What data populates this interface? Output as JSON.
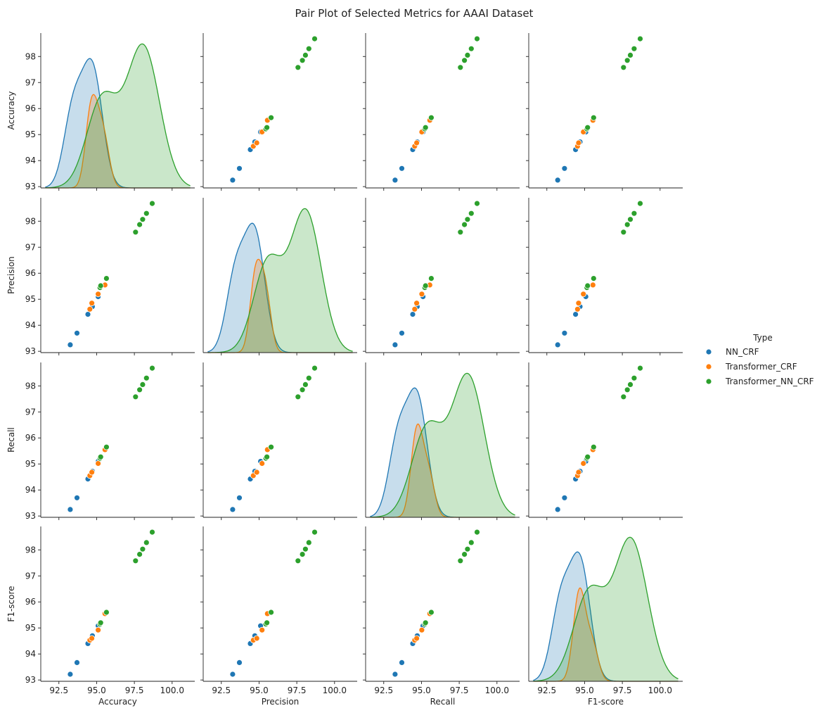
{
  "chart_data": {
    "type": "pairplot",
    "title": "Pair Plot of Selected Metrics for AAAI Dataset",
    "variables": [
      "Accuracy",
      "Precision",
      "Recall",
      "F1-score"
    ],
    "hue_label": "Type",
    "xlim": [
      91.3,
      101.5
    ],
    "ylim": [
      92.95,
      98.9
    ],
    "x_ticks": [
      92.5,
      95.0,
      97.5,
      100.0
    ],
    "x_tick_labels": [
      "92.5",
      "95.0",
      "97.5",
      "100.0"
    ],
    "y_ticks": [
      93,
      94,
      95,
      96,
      97,
      98
    ],
    "y_tick_labels": [
      "93",
      "94",
      "95",
      "96",
      "97",
      "98"
    ],
    "series": [
      {
        "name": "NN_CRF",
        "color": "#1f77b4",
        "points": [
          {
            "Accuracy": 93.25,
            "Precision": 93.25,
            "Recall": 93.25,
            "F1-score": 93.22
          },
          {
            "Accuracy": 93.7,
            "Precision": 93.7,
            "Recall": 93.7,
            "F1-score": 93.67
          },
          {
            "Accuracy": 94.42,
            "Precision": 94.42,
            "Recall": 94.42,
            "F1-score": 94.4
          },
          {
            "Accuracy": 94.72,
            "Precision": 94.72,
            "Recall": 94.72,
            "F1-score": 94.7
          },
          {
            "Accuracy": 95.1,
            "Precision": 95.1,
            "Recall": 95.1,
            "F1-score": 95.08
          }
        ]
      },
      {
        "name": "Transformer_CRF",
        "color": "#ff7f0e",
        "points": [
          {
            "Accuracy": 94.55,
            "Precision": 94.62,
            "Recall": 94.55,
            "F1-score": 94.53
          },
          {
            "Accuracy": 94.68,
            "Precision": 94.85,
            "Recall": 94.68,
            "F1-score": 94.6
          },
          {
            "Accuracy": 95.1,
            "Precision": 95.2,
            "Recall": 95.02,
            "F1-score": 94.92
          },
          {
            "Accuracy": 95.55,
            "Precision": 95.55,
            "Recall": 95.55,
            "F1-score": 95.55
          }
        ]
      },
      {
        "name": "Transformer_NN_CRF",
        "color": "#2ca02c",
        "points": [
          {
            "Accuracy": 95.22,
            "Precision": 95.45,
            "Recall": 95.22,
            "F1-score": 95.15
          },
          {
            "Accuracy": 95.27,
            "Precision": 95.52,
            "Recall": 95.27,
            "F1-score": 95.2
          },
          {
            "Accuracy": 95.65,
            "Precision": 95.8,
            "Recall": 95.65,
            "F1-score": 95.6
          },
          {
            "Accuracy": 97.58,
            "Precision": 97.58,
            "Recall": 97.58,
            "F1-score": 97.58
          },
          {
            "Accuracy": 97.85,
            "Precision": 97.87,
            "Recall": 97.85,
            "F1-score": 97.83
          },
          {
            "Accuracy": 98.05,
            "Precision": 98.07,
            "Recall": 98.05,
            "F1-score": 98.03
          },
          {
            "Accuracy": 98.3,
            "Precision": 98.3,
            "Recall": 98.3,
            "F1-score": 98.28
          },
          {
            "Accuracy": 98.68,
            "Precision": 98.68,
            "Recall": 98.68,
            "F1-score": 98.68
          }
        ]
      }
    ],
    "kde_scale": [
      {
        "variable": "Accuracy",
        "peaks": [
          0.97,
          0.7,
          1.08
        ]
      },
      {
        "variable": "Precision",
        "peaks": [
          0.97,
          0.7,
          1.08
        ]
      },
      {
        "variable": "Recall",
        "peaks": [
          0.97,
          0.7,
          1.08
        ]
      },
      {
        "variable": "F1-score",
        "peaks": [
          0.97,
          0.7,
          1.08
        ]
      }
    ],
    "legend_position": "right"
  }
}
